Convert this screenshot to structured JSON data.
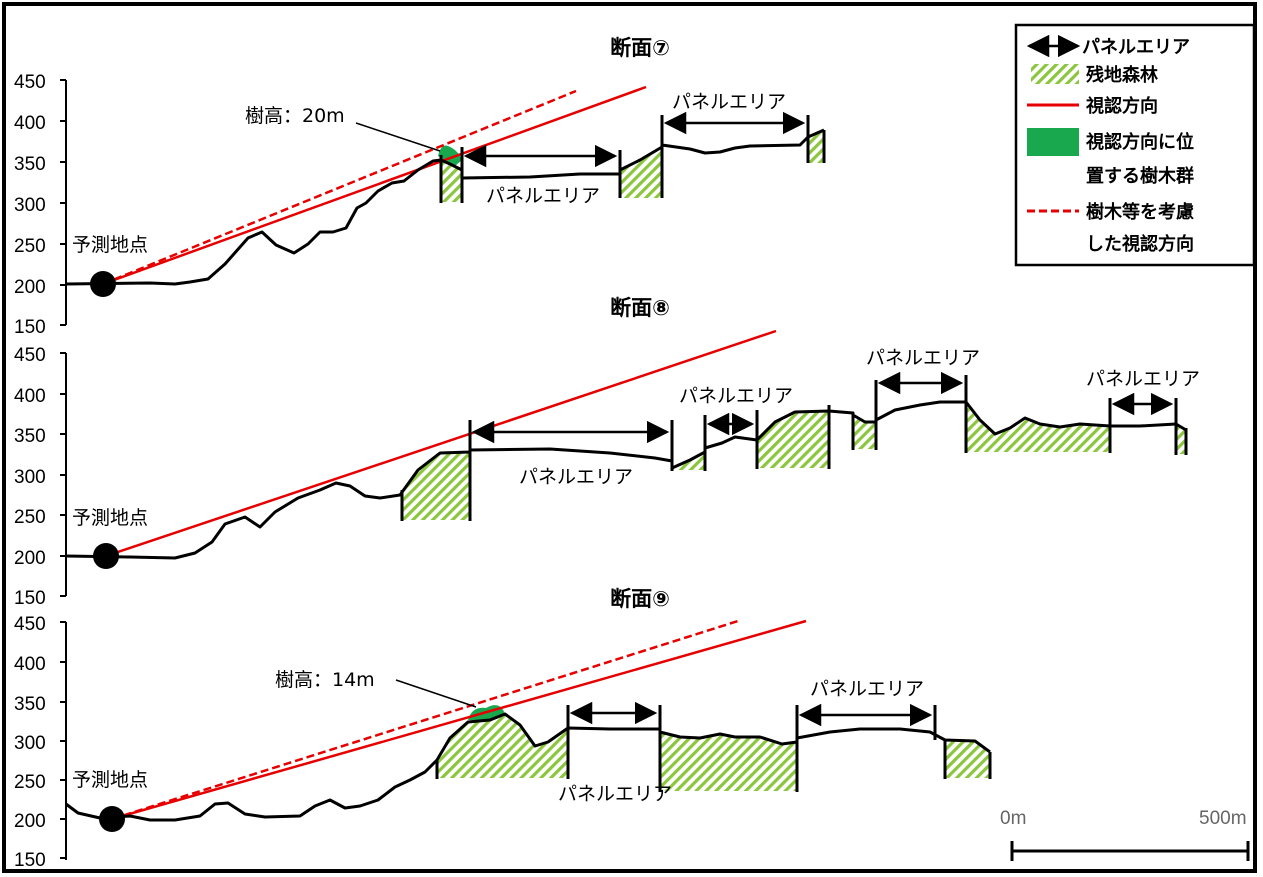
{
  "sections": [
    {
      "title": "断面⑦",
      "observer": "予測地点",
      "tree_label": "樹高：20m",
      "panel_labels": [
        "パネルエリア",
        "パネルエリア"
      ]
    },
    {
      "title": "断面⑧",
      "observer": "予測地点",
      "panel_labels": [
        "パネルエリア",
        "パネルエリア",
        "パネルエリア",
        "パネルエリア"
      ]
    },
    {
      "title": "断面⑨",
      "observer": "予測地点",
      "tree_label": "樹高：14m",
      "panel_labels": [
        "パネルエリア",
        "パネルエリア"
      ]
    }
  ],
  "y_ticks": [
    "450",
    "400",
    "350",
    "300",
    "250",
    "200",
    "150"
  ],
  "legend": {
    "items": [
      "パネルエリア",
      "残地森林",
      "視認方向",
      "視認方向に位置する樹木群",
      "樹木等を考慮した視認方向"
    ],
    "item4_lines": [
      "視認方向に位",
      "置する樹木群"
    ],
    "item5_lines": [
      "樹木等を考慮",
      "した視認方向"
    ]
  },
  "scale_bar": {
    "left": "0m",
    "right": "500m"
  },
  "colors": {
    "sight_line": "#e60000",
    "forest_hatch": "#8cc63f",
    "tree_group": "#1aa84f",
    "terrain": "#000000"
  }
}
